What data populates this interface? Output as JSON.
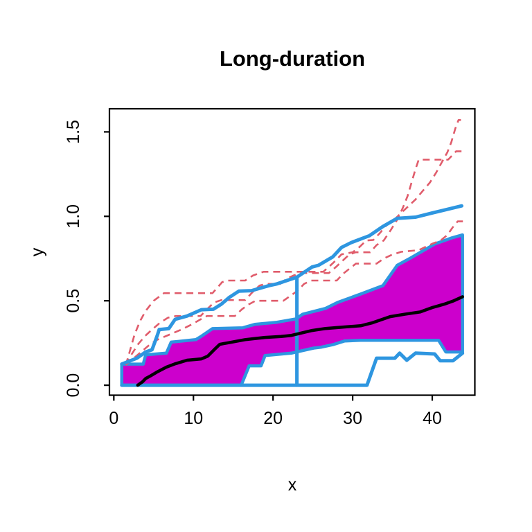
{
  "title": "Long-duration",
  "chart_data": {
    "type": "line",
    "title": "Long-duration",
    "xlabel": "x",
    "ylabel": "y",
    "xlim": [
      -0.55,
      45.35
    ],
    "ylim": [
      -0.059,
      1.637
    ],
    "x_ticks": [
      0,
      10,
      20,
      30,
      40
    ],
    "x_tick_labels": [
      "0",
      "10",
      "20",
      "30",
      "40"
    ],
    "y_ticks": [
      0.0,
      0.5,
      1.0,
      1.5
    ],
    "y_tick_labels": [
      "0.0",
      "0.5",
      "1.0",
      "1.5"
    ],
    "grid": false,
    "legend": "none",
    "colors": {
      "band_fill": "#CC00CC",
      "band_line": "#2E96E0",
      "envelope_line": "#2E96E0",
      "median_line": "#000000",
      "simulation_line": "#E05C6B",
      "axis": "#000000",
      "background": "#FFFFFF"
    },
    "band": {
      "name": "inner-confidence-band",
      "lower": [
        [
          1.0,
          0.0
        ],
        [
          16.0,
          0.0
        ],
        [
          17.0,
          0.115
        ],
        [
          18.5,
          0.115
        ],
        [
          19.0,
          0.176
        ],
        [
          22.3,
          0.19
        ],
        [
          25.1,
          0.22
        ],
        [
          26.0,
          0.225
        ],
        [
          27.5,
          0.24
        ],
        [
          29.0,
          0.262
        ],
        [
          31.0,
          0.266
        ],
        [
          40.8,
          0.266
        ],
        [
          41.7,
          0.197
        ],
        [
          43.8,
          0.197
        ]
      ],
      "upper": [
        [
          1.0,
          0.125
        ],
        [
          3.7,
          0.125
        ],
        [
          4.0,
          0.18
        ],
        [
          6.6,
          0.19
        ],
        [
          7.2,
          0.255
        ],
        [
          10.3,
          0.27
        ],
        [
          11.0,
          0.29
        ],
        [
          12.4,
          0.335
        ],
        [
          16.2,
          0.34
        ],
        [
          17.7,
          0.36
        ],
        [
          20.5,
          0.373
        ],
        [
          22.9,
          0.393
        ],
        [
          23.7,
          0.42
        ],
        [
          26.6,
          0.455
        ],
        [
          28.1,
          0.49
        ],
        [
          31.0,
          0.54
        ],
        [
          33.8,
          0.59
        ],
        [
          35.6,
          0.71
        ],
        [
          37.3,
          0.754
        ],
        [
          40.3,
          0.836
        ],
        [
          42.5,
          0.873
        ],
        [
          43.8,
          0.89
        ]
      ]
    },
    "series": [
      {
        "name": "dashed-trajectory-1",
        "color": "simulation_line",
        "style": "dashed",
        "width": 2.6,
        "points": [
          [
            1.5,
            0.12
          ],
          [
            2.0,
            0.2
          ],
          [
            2.6,
            0.3
          ],
          [
            3.3,
            0.38
          ],
          [
            4.0,
            0.44
          ],
          [
            5.0,
            0.5
          ],
          [
            6.3,
            0.545
          ],
          [
            12.4,
            0.545
          ],
          [
            13.6,
            0.61
          ],
          [
            14.2,
            0.62
          ],
          [
            16.5,
            0.62
          ],
          [
            17.5,
            0.65
          ],
          [
            18.8,
            0.672
          ],
          [
            26.3,
            0.672
          ],
          [
            27.0,
            0.7
          ],
          [
            27.8,
            0.735
          ],
          [
            28.6,
            0.775
          ],
          [
            30.0,
            0.787
          ],
          [
            30.9,
            0.82
          ],
          [
            31.7,
            0.857
          ],
          [
            32.6,
            0.86
          ],
          [
            33.4,
            0.9
          ],
          [
            34.3,
            0.95
          ],
          [
            35.2,
            0.98
          ],
          [
            36.1,
            1.02
          ],
          [
            37.0,
            1.06
          ],
          [
            37.9,
            1.1
          ],
          [
            38.8,
            1.15
          ],
          [
            39.7,
            1.2
          ],
          [
            40.5,
            1.26
          ],
          [
            41.2,
            1.32
          ],
          [
            41.9,
            1.38
          ],
          [
            42.4,
            1.44
          ],
          [
            42.9,
            1.52
          ],
          [
            43.3,
            1.57
          ],
          [
            43.6,
            1.57
          ]
        ]
      },
      {
        "name": "dashed-trajectory-2",
        "color": "simulation_line",
        "style": "dashed",
        "width": 2.6,
        "points": [
          [
            1.5,
            0.12
          ],
          [
            2.2,
            0.18
          ],
          [
            3.0,
            0.24
          ],
          [
            3.9,
            0.29
          ],
          [
            4.8,
            0.33
          ],
          [
            5.8,
            0.37
          ],
          [
            6.8,
            0.4
          ],
          [
            7.8,
            0.41
          ],
          [
            10.9,
            0.41
          ],
          [
            11.7,
            0.45
          ],
          [
            12.6,
            0.49
          ],
          [
            13.5,
            0.504
          ],
          [
            16.5,
            0.504
          ],
          [
            17.4,
            0.55
          ],
          [
            18.3,
            0.59
          ],
          [
            19.1,
            0.6
          ],
          [
            20.9,
            0.6
          ],
          [
            21.7,
            0.63
          ],
          [
            22.6,
            0.65
          ],
          [
            23.5,
            0.664
          ],
          [
            27.0,
            0.664
          ],
          [
            27.9,
            0.7
          ],
          [
            28.8,
            0.74
          ],
          [
            29.6,
            0.775
          ],
          [
            30.4,
            0.787
          ],
          [
            32.2,
            0.787
          ],
          [
            33.0,
            0.83
          ],
          [
            33.9,
            0.857
          ],
          [
            34.8,
            0.92
          ],
          [
            35.6,
            0.98
          ],
          [
            36.3,
            1.05
          ],
          [
            36.9,
            1.12
          ],
          [
            37.4,
            1.2
          ],
          [
            37.9,
            1.28
          ],
          [
            38.3,
            1.336
          ],
          [
            42.0,
            1.336
          ],
          [
            43.0,
            1.385
          ],
          [
            44.2,
            1.385
          ]
        ]
      },
      {
        "name": "dashed-trajectory-3",
        "color": "simulation_line",
        "style": "dashed",
        "width": 2.6,
        "points": [
          [
            1.5,
            0.12
          ],
          [
            2.5,
            0.16
          ],
          [
            3.5,
            0.2
          ],
          [
            4.5,
            0.24
          ],
          [
            5.5,
            0.27
          ],
          [
            7.0,
            0.3
          ],
          [
            8.5,
            0.33
          ],
          [
            9.8,
            0.36
          ],
          [
            10.9,
            0.39
          ],
          [
            11.7,
            0.41
          ],
          [
            15.2,
            0.41
          ],
          [
            16.1,
            0.45
          ],
          [
            17.0,
            0.48
          ],
          [
            17.8,
            0.5
          ],
          [
            21.3,
            0.5
          ],
          [
            22.2,
            0.53
          ],
          [
            23.1,
            0.56
          ],
          [
            23.9,
            0.6
          ],
          [
            24.8,
            0.62
          ],
          [
            28.0,
            0.62
          ],
          [
            28.8,
            0.66
          ],
          [
            29.6,
            0.69
          ],
          [
            30.4,
            0.72
          ],
          [
            33.0,
            0.72
          ],
          [
            33.9,
            0.75
          ],
          [
            34.8,
            0.77
          ],
          [
            36.1,
            0.79
          ],
          [
            38.3,
            0.8
          ],
          [
            39.2,
            0.82
          ],
          [
            40.1,
            0.84
          ],
          [
            41.0,
            0.855
          ],
          [
            41.9,
            0.89
          ],
          [
            42.5,
            0.93
          ],
          [
            42.9,
            0.955
          ],
          [
            43.2,
            0.97
          ],
          [
            44.0,
            0.97
          ]
        ]
      },
      {
        "name": "outer-band-upper-line",
        "color": "envelope_line",
        "style": "solid",
        "width": 5,
        "points": [
          [
            1.0,
            0.125
          ],
          [
            2.9,
            0.16
          ],
          [
            4.0,
            0.197
          ],
          [
            4.8,
            0.21
          ],
          [
            5.5,
            0.3
          ],
          [
            5.7,
            0.33
          ],
          [
            6.9,
            0.335
          ],
          [
            7.7,
            0.39
          ],
          [
            9.2,
            0.41
          ],
          [
            11.0,
            0.447
          ],
          [
            12.5,
            0.45
          ],
          [
            13.5,
            0.48
          ],
          [
            14.5,
            0.52
          ],
          [
            15.7,
            0.557
          ],
          [
            17.3,
            0.56
          ],
          [
            19.5,
            0.59
          ],
          [
            20.5,
            0.6
          ],
          [
            23.0,
            0.64
          ],
          [
            24.9,
            0.7
          ],
          [
            25.7,
            0.71
          ],
          [
            27.5,
            0.76
          ],
          [
            28.6,
            0.816
          ],
          [
            29.8,
            0.844
          ],
          [
            32.1,
            0.885
          ],
          [
            33.8,
            0.94
          ],
          [
            35.6,
            0.988
          ],
          [
            37.9,
            0.995
          ],
          [
            40.0,
            1.02
          ],
          [
            43.7,
            1.062
          ]
        ]
      },
      {
        "name": "outer-band-lower-line",
        "color": "envelope_line",
        "style": "solid",
        "width": 5,
        "points": [
          [
            1.0,
            0.0
          ],
          [
            31.8,
            0.0
          ],
          [
            33.0,
            0.16
          ],
          [
            35.3,
            0.16
          ],
          [
            35.9,
            0.19
          ],
          [
            36.8,
            0.148
          ],
          [
            37.9,
            0.19
          ],
          [
            40.3,
            0.185
          ],
          [
            41.0,
            0.145
          ],
          [
            42.6,
            0.145
          ],
          [
            43.8,
            0.19
          ]
        ]
      },
      {
        "name": "vertical-marker-line",
        "color": "envelope_line",
        "style": "solid",
        "width": 5,
        "points": [
          [
            23.0,
            0.0
          ],
          [
            23.0,
            0.64
          ]
        ]
      },
      {
        "name": "median-line",
        "color": "median_line",
        "style": "solid",
        "width": 4.5,
        "points": [
          [
            3.0,
            0.0
          ],
          [
            3.6,
            0.02
          ],
          [
            4.0,
            0.04
          ],
          [
            4.6,
            0.055
          ],
          [
            5.5,
            0.08
          ],
          [
            6.6,
            0.107
          ],
          [
            7.7,
            0.127
          ],
          [
            9.2,
            0.148
          ],
          [
            11.0,
            0.156
          ],
          [
            11.8,
            0.172
          ],
          [
            12.6,
            0.21
          ],
          [
            13.3,
            0.242
          ],
          [
            14.8,
            0.255
          ],
          [
            16.5,
            0.27
          ],
          [
            19.0,
            0.283
          ],
          [
            21.0,
            0.289
          ],
          [
            22.3,
            0.295
          ],
          [
            24.9,
            0.324
          ],
          [
            26.6,
            0.336
          ],
          [
            29.0,
            0.345
          ],
          [
            31.0,
            0.352
          ],
          [
            32.5,
            0.37
          ],
          [
            34.7,
            0.406
          ],
          [
            36.5,
            0.42
          ],
          [
            38.5,
            0.434
          ],
          [
            40.0,
            0.46
          ],
          [
            41.5,
            0.48
          ],
          [
            42.7,
            0.5
          ],
          [
            43.8,
            0.524
          ]
        ]
      }
    ]
  }
}
